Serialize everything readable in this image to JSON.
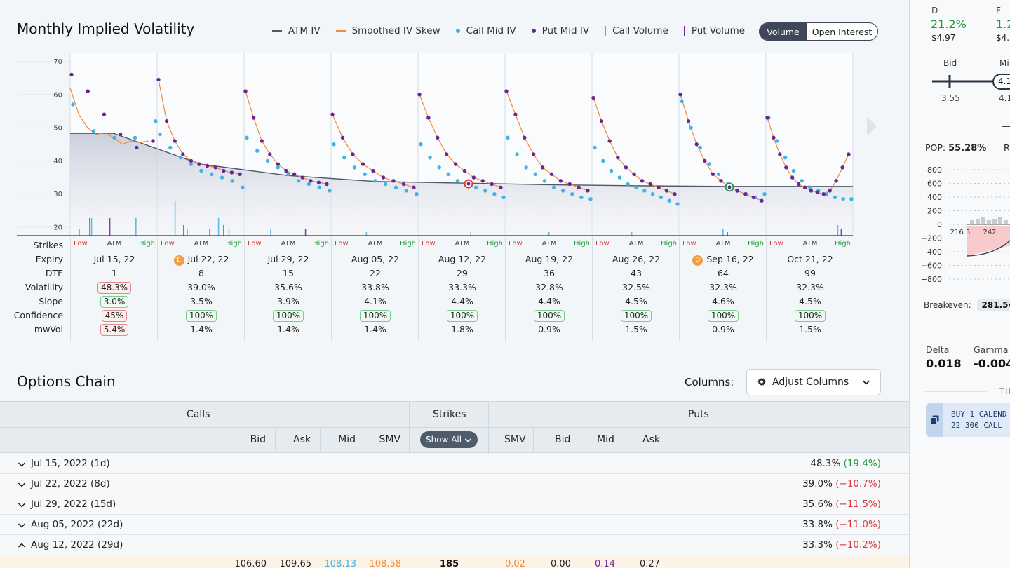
{
  "volatility": {
    "title": "Monthly Implied Volatility",
    "legend": [
      {
        "label": "ATM IV",
        "kind": "line",
        "color": "#4e5866"
      },
      {
        "label": "Smoothed IV Skew",
        "kind": "line",
        "color": "#f08a3c"
      },
      {
        "label": "Call Mid IV",
        "kind": "dot",
        "color": "#3fb3e6"
      },
      {
        "label": "Put Mid IV",
        "kind": "dot",
        "color": "#6a2595"
      },
      {
        "label": "Call Volume",
        "kind": "bar",
        "color": "#3fb3e6"
      },
      {
        "label": "Put Volume",
        "kind": "bar",
        "color": "#6a2595"
      }
    ],
    "toggle": {
      "active": "Volume",
      "inactive": "Open Interest"
    },
    "row_labels": {
      "strikes": "Strikes",
      "expiry": "Expiry",
      "dte": "DTE",
      "volatility": "Volatility",
      "slope": "Slope",
      "confidence": "Confidence",
      "mwvol": "mwVol"
    },
    "strike_labels": {
      "low": "Low",
      "atm": "ATM",
      "high": "High"
    }
  },
  "chart_data": {
    "type": "scatter",
    "ylim": [
      18,
      72
    ],
    "yticks": [
      20,
      30,
      40,
      50,
      60,
      70
    ],
    "grid": true,
    "colors": {
      "atm": "#4e5866",
      "smoothed": "#f08a3c",
      "call": "#3fb3e6",
      "put": "#6a2595"
    },
    "series": [
      {
        "name": "ATM IV",
        "values": [
          48.3,
          39.0,
          35.6,
          33.8,
          33.3,
          32.8,
          32.5,
          32.3,
          32.3
        ]
      },
      {
        "name": "Call Mid IV"
      },
      {
        "name": "Put Mid IV"
      }
    ],
    "expiries": [
      {
        "expiry": "Jul 15, 22",
        "dte": "1",
        "volatility": "48.3%",
        "slope": "3.0%",
        "confidence": "45%",
        "mwvol": "5.4%",
        "vol_flag": "red",
        "slope_flag": "green",
        "conf_flag": "red",
        "mw_flag": "red",
        "badge": "",
        "put_iv": [
          66,
          61,
          54,
          48,
          44,
          46
        ],
        "call_iv": [
          57,
          49,
          47,
          47,
          52
        ],
        "skew_curve": [
          [
            0,
            62
          ],
          [
            0.05,
            58
          ],
          [
            0.1,
            54
          ],
          [
            0.2,
            50
          ],
          [
            0.3,
            48
          ],
          [
            0.4,
            48.5
          ],
          [
            0.5,
            47
          ],
          [
            0.6,
            45
          ],
          [
            0.7,
            46
          ],
          [
            0.8,
            45.5
          ],
          [
            0.9,
            46
          ]
        ],
        "volume": [
          [
            0.1,
            2
          ],
          [
            0.22,
            5
          ],
          [
            0.24,
            5
          ],
          [
            0.45,
            5
          ],
          [
            0.75,
            5
          ]
        ]
      },
      {
        "expiry": "Jul 22, 22",
        "dte": "8",
        "volatility": "39.0%",
        "slope": "3.5%",
        "confidence": "100%",
        "mwvol": "1.4%",
        "conf_flag": "green",
        "badge": "E",
        "put_iv": [
          64.5,
          52,
          46,
          42,
          40,
          39,
          38.5,
          38,
          37,
          36.5,
          36
        ],
        "call_iv": [
          48,
          44,
          41,
          39,
          37,
          36,
          35,
          34,
          32
        ],
        "volume": [
          [
            0.2,
            10
          ],
          [
            0.3,
            3
          ],
          [
            0.34,
            2
          ],
          [
            0.6,
            2
          ],
          [
            0.7,
            5
          ],
          [
            0.76,
            3
          ],
          [
            0.82,
            2
          ]
        ]
      },
      {
        "expiry": "Jul 29, 22",
        "dte": "15",
        "volatility": "35.6%",
        "slope": "3.9%",
        "confidence": "100%",
        "mwvol": "1.4%",
        "conf_flag": "green",
        "badge": "",
        "put_iv": [
          61,
          53,
          46,
          42,
          39,
          37,
          36,
          35,
          34,
          33.5,
          33
        ],
        "call_iv": [
          47,
          43,
          40,
          38,
          36,
          34,
          33,
          32,
          31
        ],
        "volume": [
          [
            0.3,
            2
          ],
          [
            0.7,
            2
          ]
        ]
      },
      {
        "expiry": "Aug 05, 22",
        "dte": "22",
        "volatility": "33.8%",
        "slope": "4.1%",
        "confidence": "100%",
        "mwvol": "1.4%",
        "conf_flag": "green",
        "badge": "",
        "put_iv": [
          54,
          47,
          42,
          39,
          37,
          35,
          34,
          33,
          32
        ],
        "call_iv": [
          45,
          41,
          38,
          36,
          34,
          33,
          32,
          31,
          30
        ],
        "volume": [
          [
            0.4,
            1
          ]
        ]
      },
      {
        "expiry": "Aug 12, 22",
        "dte": "29",
        "volatility": "33.3%",
        "slope": "4.4%",
        "confidence": "100%",
        "mwvol": "1.8%",
        "conf_flag": "green",
        "badge": "",
        "put_iv": [
          60,
          53,
          47,
          42,
          39,
          37,
          35,
          34,
          33,
          32
        ],
        "call_iv": [
          45,
          41,
          38,
          36,
          34,
          33,
          32,
          31,
          30,
          29
        ],
        "volume": [
          [
            0.6,
            1
          ]
        ]
      },
      {
        "expiry": "Aug 19, 22",
        "dte": "36",
        "volatility": "32.8%",
        "slope": "4.4%",
        "confidence": "100%",
        "mwvol": "0.9%",
        "conf_flag": "green",
        "badge": "",
        "put_iv": [
          61,
          54,
          47,
          42,
          38,
          36,
          34,
          33,
          32,
          31
        ],
        "call_iv": [
          47,
          42,
          38,
          36,
          34,
          32,
          31,
          30,
          29,
          28.5
        ],
        "volume": [
          [
            0.5,
            1
          ]
        ]
      },
      {
        "expiry": "Aug 26, 22",
        "dte": "43",
        "volatility": "32.5%",
        "slope": "4.5%",
        "confidence": "100%",
        "mwvol": "1.5%",
        "conf_flag": "green",
        "badge": "",
        "put_iv": [
          59,
          52,
          46,
          41,
          38,
          36,
          34,
          33,
          32,
          31,
          30
        ],
        "call_iv": [
          44,
          40,
          37,
          35,
          33,
          32,
          31,
          30,
          29,
          28,
          27
        ],
        "volume": [
          [
            0.45,
            1
          ]
        ]
      },
      {
        "expiry": "Sep 16, 22",
        "dte": "64",
        "volatility": "32.3%",
        "slope": "4.6%",
        "confidence": "100%",
        "mwvol": "0.9%",
        "conf_flag": "green",
        "badge": "D",
        "put_iv": [
          60,
          52,
          45,
          40,
          36,
          34,
          32,
          31,
          30,
          29,
          28
        ],
        "call_iv": [
          58,
          50,
          44,
          39,
          36,
          33,
          31,
          30,
          29,
          30
        ],
        "volume": [
          [
            0.5,
            2
          ],
          [
            0.55,
            1
          ]
        ]
      },
      {
        "expiry": "Oct 21, 22",
        "dte": "99",
        "volatility": "32.3%",
        "slope": "4.5%",
        "confidence": "100%",
        "mwvol": "1.5%",
        "conf_flag": "green",
        "badge": "",
        "put_iv": [
          53,
          47,
          42,
          38,
          35,
          33,
          32,
          31,
          30.5,
          30,
          31,
          34,
          38,
          42
        ],
        "call_iv": [
          53,
          46,
          41,
          37,
          34,
          32,
          31,
          30,
          29,
          28.5,
          28.5
        ],
        "volume": [
          [
            0.82,
            3
          ],
          [
            0.86,
            2
          ]
        ]
      }
    ]
  },
  "options_chain": {
    "title": "Options Chain",
    "columns_label": "Columns:",
    "adjust_button": "Adjust Columns",
    "calls_header": "Calls",
    "strikes_header": "Strikes",
    "puts_header": "Puts",
    "call_cols": [
      "Bid",
      "Ask",
      "Mid",
      "SMV"
    ],
    "put_cols": [
      "SMV",
      "Bid",
      "Mid",
      "Ask"
    ],
    "show_all": "Show All",
    "expiries": [
      {
        "label": "Jul 15, 2022 (1d)",
        "iv": "48.3%",
        "change": "(19.4%)",
        "dir": "pos",
        "open": false
      },
      {
        "label": "Jul 22, 2022 (8d)",
        "iv": "39.0%",
        "change": "(−10.7%)",
        "dir": "neg",
        "open": false
      },
      {
        "label": "Jul 29, 2022 (15d)",
        "iv": "35.6%",
        "change": "(−11.5%)",
        "dir": "neg",
        "open": false
      },
      {
        "label": "Aug 05, 2022 (22d)",
        "iv": "33.8%",
        "change": "(−11.0%)",
        "dir": "neg",
        "open": false
      },
      {
        "label": "Aug 12, 2022 (29d)",
        "iv": "33.3%",
        "change": "(−10.2%)",
        "dir": "neg",
        "open": true
      }
    ],
    "first_row": {
      "call_bid": "106.60",
      "call_ask": "109.65",
      "call_mid": "108.13",
      "call_smv": "108.58",
      "strike": "185",
      "put_smv": "0.02",
      "put_bid": "0.00",
      "put_mid": "0.14",
      "put_ask": "0.27"
    }
  },
  "right_panel": {
    "col1_label": "D",
    "col1_value": "21.2%",
    "col1_price": "$4.97",
    "col2_label": "F",
    "col2_value": "1.2",
    "col2_price": "$4.1",
    "bid_label": "Bid",
    "mid_label": "Mi",
    "bid_value": "3.55",
    "mid_pill": "4.1",
    "mid_value": "4.1",
    "pop_label": "POP:",
    "pop_value": "55.28%",
    "right_cut": "R",
    "pl_ticks": [
      "800",
      "600",
      "400",
      "200",
      "0",
      "−200",
      "−400",
      "−600",
      "−800"
    ],
    "x_ticks": [
      "216.5",
      "242"
    ],
    "breakeven_label": "Breakeven:",
    "breakeven_value": "281.54",
    "delta_label": "Delta",
    "delta_value": "0.018",
    "gamma_label": "Gamma",
    "gamma_value": "-0.004",
    "section_label": "TH",
    "trade_line1": "BUY 1 CALEND",
    "trade_line2": "22 300 CALL"
  }
}
